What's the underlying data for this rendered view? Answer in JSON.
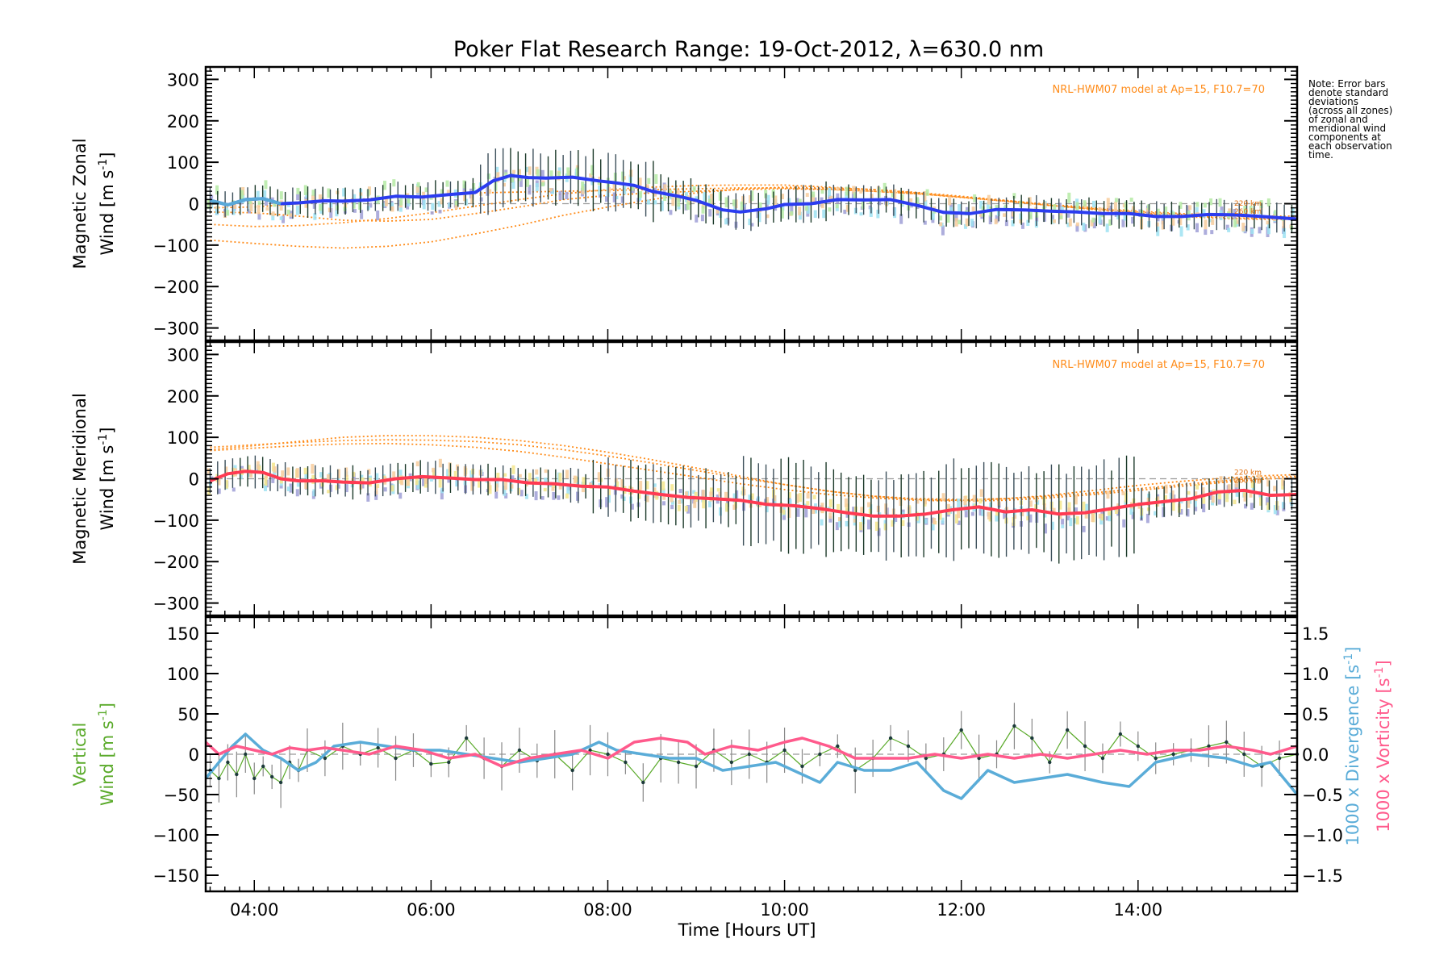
{
  "title": "Poker Flat Research Range: 19-Oct-2012, λ=630.0 nm",
  "note_lines": [
    "Note: Error bars",
    "denote standard",
    "deviations",
    "(across all zones)",
    "of zonal and",
    "meridional wind",
    "components at",
    "each observation",
    "time."
  ],
  "model_label": "NRL-HWM07 model at Ap=15, F10.7=70",
  "alt_labels": [
    "220 km",
    "260 km"
  ],
  "colors": {
    "zonal_mean": "#2b3cf0",
    "zonal_early": "#58a9d8",
    "meridional_mean": "#ff3a52",
    "vertical": "#5aaa2a",
    "divergence": "#5aacd8",
    "vorticity": "#ff5a8c",
    "model": "#ff8c1a",
    "zone_lavender": "#9f9fd6",
    "zone_cyan": "#9ee2f2",
    "zone_peach": "#f7cc9c",
    "zone_yellow": "#f5e68c",
    "zone_green": "#b5eaa4",
    "errorbar_dark": "#1c3a2a"
  },
  "chart_data": [
    {
      "type": "line",
      "panel": "zonal",
      "ylabel": [
        "Magnetic Zonal",
        "Wind [m s",
        "-1",
        "]"
      ],
      "ylim": [
        -330,
        330
      ],
      "yticks": [
        300,
        200,
        100,
        0,
        -100,
        -200,
        -300
      ],
      "xlim": [
        3.45,
        15.8
      ],
      "model_note": "NRL-HWM07 model at Ap=15, F10.7=70",
      "series": [
        {
          "values_x": [
            3.5,
            3.7,
            3.9,
            4.1,
            4.3,
            4.5,
            4.8,
            5.0,
            5.3,
            5.6,
            5.9,
            6.2,
            6.5,
            6.7,
            6.9,
            7.1,
            7.3,
            7.6,
            7.9,
            8.1,
            8.3,
            8.5,
            8.8,
            9.0,
            9.3,
            9.5,
            9.8,
            10.0,
            10.3,
            10.6,
            10.9,
            11.2,
            11.5,
            11.8,
            12.1,
            12.4,
            12.7,
            13.0,
            13.3,
            13.6,
            13.9,
            14.2,
            14.5,
            14.8,
            15.1,
            15.4,
            15.8
          ],
          "values": [
            8,
            -3,
            10,
            12,
            0,
            2,
            7,
            6,
            9,
            18,
            16,
            22,
            27,
            55,
            68,
            63,
            62,
            64,
            55,
            50,
            44,
            30,
            18,
            8,
            -15,
            -20,
            -12,
            -2,
            0,
            10,
            9,
            10,
            -4,
            -21,
            -24,
            -14,
            -15,
            -18,
            -20,
            -24,
            -24,
            -31,
            -31,
            -26,
            -27,
            -31,
            -37
          ]
        }
      ],
      "model_curves": [
        {
          "x": [
            3.5,
            4.0,
            4.5,
            5.0,
            5.5,
            6.0,
            6.5,
            7.0,
            7.5,
            8.0,
            8.5,
            9.0,
            9.5,
            10.0,
            10.5,
            11.0,
            11.5,
            12.0,
            12.5,
            13.0,
            13.5,
            14.0,
            14.5,
            15.0,
            15.5,
            15.8
          ],
          "values": [
            -88,
            -96,
            -103,
            -107,
            -103,
            -92,
            -73,
            -52,
            -28,
            -8,
            10,
            26,
            35,
            40,
            38,
            34,
            27,
            18,
            8,
            -4,
            -14,
            -24,
            -31,
            -36,
            -38,
            -38
          ]
        },
        {
          "x": [
            3.5,
            4.0,
            4.5,
            5.0,
            5.5,
            6.0,
            6.5,
            7.0,
            7.5,
            8.0,
            8.5,
            9.0,
            9.5,
            10.0,
            10.5,
            11.0,
            11.5,
            12.0,
            12.5,
            13.0,
            13.5,
            14.0,
            14.5,
            15.0,
            15.5,
            15.8
          ],
          "values": [
            -50,
            -55,
            -53,
            -46,
            -36,
            -22,
            -6,
            10,
            24,
            34,
            40,
            44,
            45,
            45,
            40,
            34,
            26,
            16,
            6,
            -4,
            -13,
            -22,
            -29,
            -34,
            -36,
            -36
          ]
        },
        {
          "x": [
            3.5,
            4.0,
            4.5,
            5.0,
            5.5,
            6.0,
            6.5,
            7.0,
            7.5,
            8.0,
            8.5,
            9.0,
            9.5,
            10.0,
            10.5,
            11.0,
            11.5,
            12.0,
            12.5,
            13.0,
            13.5,
            14.0,
            14.5,
            15.0,
            15.5,
            15.8
          ],
          "values": [
            -10,
            -8,
            0,
            8,
            15,
            20,
            26,
            28,
            30,
            32,
            34,
            36,
            38,
            38,
            35,
            30,
            24,
            15,
            6,
            -4,
            -12,
            -20,
            -26,
            -30,
            -33,
            -34
          ]
        },
        {
          "x": [
            3.5,
            4.0,
            4.5,
            5.0,
            5.5,
            6.0,
            6.5,
            7.0,
            7.5,
            8.0,
            8.5,
            9.0,
            9.5,
            10.0,
            10.5,
            11.0,
            11.5,
            12.0,
            12.5,
            13.0,
            13.5,
            14.0,
            14.5,
            15.0,
            15.5,
            15.8
          ],
          "values": [
            -20,
            -22,
            -30,
            -40,
            -42,
            -38,
            -24,
            -8,
            10,
            20,
            26,
            30,
            34,
            36,
            34,
            30,
            24,
            16,
            8,
            -2,
            -10,
            -18,
            -24,
            -28,
            -30,
            -30
          ]
        }
      ]
    },
    {
      "type": "line",
      "panel": "meridional",
      "ylabel": [
        "Magnetic Meridional",
        "Wind [m s",
        "-1",
        "]"
      ],
      "ylim": [
        -330,
        330
      ],
      "yticks": [
        300,
        200,
        100,
        0,
        -100,
        -200,
        -300
      ],
      "xlim": [
        3.45,
        15.8
      ],
      "model_note": "NRL-HWM07 model at Ap=15, F10.7=70",
      "series": [
        {
          "values_x": [
            3.5,
            3.7,
            3.9,
            4.1,
            4.3,
            4.5,
            4.8,
            5.0,
            5.3,
            5.6,
            5.9,
            6.2,
            6.5,
            6.8,
            7.1,
            7.4,
            7.7,
            8.0,
            8.3,
            8.6,
            8.9,
            9.2,
            9.5,
            9.8,
            10.1,
            10.4,
            10.7,
            11.0,
            11.3,
            11.6,
            11.9,
            12.2,
            12.5,
            12.8,
            13.1,
            13.4,
            13.7,
            14.0,
            14.3,
            14.6,
            14.9,
            15.2,
            15.5,
            15.8
          ],
          "values": [
            -5,
            12,
            18,
            15,
            0,
            -5,
            -5,
            -8,
            -10,
            0,
            5,
            2,
            -2,
            -2,
            -10,
            -12,
            -18,
            -20,
            -30,
            -38,
            -45,
            -48,
            -52,
            -62,
            -65,
            -72,
            -82,
            -90,
            -90,
            -85,
            -75,
            -68,
            -80,
            -75,
            -85,
            -82,
            -72,
            -62,
            -55,
            -48,
            -32,
            -28,
            -40,
            -38
          ]
        }
      ],
      "model_curves": [
        {
          "x": [
            3.5,
            4.0,
            4.5,
            5.0,
            5.5,
            6.0,
            6.5,
            7.0,
            7.5,
            8.0,
            8.5,
            9.0,
            9.5,
            10.0,
            10.5,
            11.0,
            11.5,
            12.0,
            12.5,
            13.0,
            13.5,
            14.0,
            14.5,
            15.0,
            15.5,
            15.8
          ],
          "values": [
            76,
            82,
            88,
            92,
            94,
            93,
            90,
            82,
            70,
            55,
            38,
            20,
            2,
            -14,
            -30,
            -42,
            -48,
            -50,
            -48,
            -42,
            -34,
            -24,
            -14,
            -4,
            4,
            6
          ]
        },
        {
          "x": [
            3.5,
            4.0,
            4.5,
            5.0,
            5.5,
            6.0,
            6.5,
            7.0,
            7.5,
            8.0,
            8.5,
            9.0,
            9.5,
            10.0,
            10.5,
            11.0,
            11.5,
            12.0,
            12.5,
            13.0,
            13.5,
            14.0,
            14.5,
            15.0,
            15.5,
            15.8
          ],
          "values": [
            68,
            74,
            80,
            84,
            85,
            82,
            76,
            66,
            52,
            36,
            20,
            4,
            -12,
            -26,
            -38,
            -46,
            -52,
            -54,
            -52,
            -46,
            -38,
            -28,
            -18,
            -8,
            0,
            2
          ]
        },
        {
          "x": [
            3.5,
            4.0,
            4.5,
            5.0,
            5.5,
            6.0,
            6.5,
            7.0,
            7.5,
            8.0,
            8.5,
            9.0,
            9.5,
            10.0,
            10.5,
            11.0,
            11.5,
            12.0,
            12.5,
            13.0,
            13.5,
            14.0,
            14.5,
            15.0,
            15.5,
            15.8
          ],
          "values": [
            70,
            80,
            90,
            100,
            104,
            104,
            100,
            92,
            80,
            64,
            46,
            26,
            6,
            -14,
            -30,
            -42,
            -50,
            -52,
            -48,
            -40,
            -28,
            -16,
            -6,
            2,
            8,
            10
          ]
        }
      ]
    },
    {
      "type": "line",
      "panel": "vertical",
      "ylabel": [
        "Vertical",
        "Wind [m s",
        "-1",
        "]"
      ],
      "ylim": [
        -170,
        170
      ],
      "yticks": [
        150,
        100,
        50,
        0,
        -50,
        -100,
        -150
      ],
      "ylim_right": [
        -1.7,
        1.7
      ],
      "yticks_right": [
        1.5,
        1.0,
        0.5,
        0.0,
        -0.5,
        -1.0,
        -1.5
      ],
      "ylabel_right": [
        {
          "text": "1000 x Divergence [s",
          "sup": "-1",
          "end": "]"
        },
        {
          "text": "1000 x Vorticity [s",
          "sup": "-1",
          "end": "]"
        }
      ],
      "xlim": [
        3.45,
        15.8
      ],
      "xticks": [
        4,
        6,
        8,
        10,
        12,
        14
      ],
      "xtick_labels": [
        "04:00",
        "06:00",
        "08:00",
        "10:00",
        "12:00",
        "14:00"
      ],
      "xlabel": "Time [Hours UT]",
      "series": [
        {
          "name": "Divergence",
          "axis": "right",
          "x": [
            3.45,
            3.6,
            3.75,
            3.9,
            4.1,
            4.3,
            4.5,
            4.7,
            4.9,
            5.2,
            5.5,
            5.8,
            6.1,
            6.4,
            6.7,
            7.0,
            7.3,
            7.6,
            7.9,
            8.1,
            8.4,
            8.7,
            9.0,
            9.3,
            9.6,
            9.9,
            10.1,
            10.4,
            10.6,
            10.9,
            11.2,
            11.5,
            11.8,
            12.0,
            12.3,
            12.6,
            12.9,
            13.2,
            13.6,
            13.9,
            14.2,
            14.6,
            15.0,
            15.3,
            15.5,
            15.8
          ],
          "values": [
            -0.3,
            -0.1,
            0.1,
            0.25,
            0.05,
            -0.05,
            -0.2,
            -0.1,
            0.1,
            0.15,
            0.1,
            0.05,
            0.05,
            0.0,
            -0.05,
            -0.1,
            -0.05,
            0.0,
            0.15,
            0.05,
            0.0,
            -0.05,
            -0.05,
            -0.2,
            -0.15,
            -0.1,
            -0.2,
            -0.35,
            -0.1,
            -0.2,
            -0.2,
            -0.1,
            -0.45,
            -0.55,
            -0.2,
            -0.35,
            -0.3,
            -0.25,
            -0.35,
            -0.4,
            -0.1,
            0.0,
            -0.05,
            -0.15,
            -0.1,
            -0.5
          ]
        },
        {
          "name": "Vorticity",
          "axis": "right",
          "x": [
            3.45,
            3.6,
            3.8,
            4.0,
            4.2,
            4.4,
            4.6,
            4.8,
            5.0,
            5.3,
            5.6,
            5.9,
            6.2,
            6.5,
            6.8,
            7.1,
            7.4,
            7.7,
            8.0,
            8.3,
            8.6,
            8.9,
            9.1,
            9.4,
            9.7,
            10.0,
            10.2,
            10.5,
            10.8,
            11.1,
            11.4,
            11.7,
            12.0,
            12.3,
            12.6,
            12.9,
            13.2,
            13.5,
            13.8,
            14.1,
            14.4,
            14.7,
            15.0,
            15.3,
            15.5,
            15.8
          ],
          "values": [
            0.15,
            0.0,
            0.1,
            0.05,
            0.0,
            0.08,
            0.05,
            0.08,
            0.05,
            0.0,
            0.1,
            0.05,
            -0.05,
            0.0,
            -0.15,
            -0.05,
            0.0,
            0.05,
            -0.05,
            0.15,
            0.2,
            0.15,
            0.0,
            0.1,
            0.05,
            0.15,
            0.2,
            0.1,
            -0.05,
            -0.05,
            -0.05,
            0.0,
            -0.05,
            0.0,
            -0.05,
            0.0,
            -0.05,
            0.0,
            0.05,
            0.0,
            0.05,
            0.05,
            0.1,
            0.05,
            0.0,
            0.1
          ]
        },
        {
          "name": "Vertical",
          "axis": "left",
          "x": [
            3.5,
            3.6,
            3.7,
            3.8,
            3.9,
            4.0,
            4.1,
            4.2,
            4.3,
            4.4,
            4.5,
            4.6,
            4.8,
            5.0,
            5.2,
            5.4,
            5.6,
            5.8,
            6.0,
            6.2,
            6.4,
            6.6,
            6.8,
            7.0,
            7.2,
            7.4,
            7.6,
            7.8,
            8.0,
            8.2,
            8.4,
            8.6,
            8.8,
            9.0,
            9.2,
            9.4,
            9.6,
            9.8,
            10.0,
            10.2,
            10.4,
            10.6,
            10.8,
            11.0,
            11.2,
            11.4,
            11.6,
            11.8,
            12.0,
            12.2,
            12.4,
            12.6,
            12.8,
            13.0,
            13.2,
            13.4,
            13.6,
            13.8,
            14.0,
            14.2,
            14.4,
            14.6,
            14.8,
            15.0,
            15.2,
            15.4,
            15.6,
            15.8
          ],
          "values": [
            -20,
            -30,
            -10,
            -25,
            0,
            -30,
            -15,
            -28,
            -35,
            -10,
            -20,
            5,
            -5,
            10,
            0,
            8,
            -5,
            5,
            -12,
            -10,
            20,
            -5,
            -15,
            5,
            -8,
            0,
            -20,
            5,
            0,
            -10,
            -35,
            -5,
            -10,
            -15,
            5,
            -10,
            0,
            -10,
            5,
            -15,
            0,
            10,
            -20,
            -5,
            20,
            10,
            -5,
            0,
            30,
            -5,
            0,
            35,
            20,
            -10,
            30,
            10,
            -5,
            25,
            10,
            -5,
            0,
            5,
            10,
            15,
            0,
            -15,
            -5,
            0
          ]
        }
      ]
    }
  ]
}
